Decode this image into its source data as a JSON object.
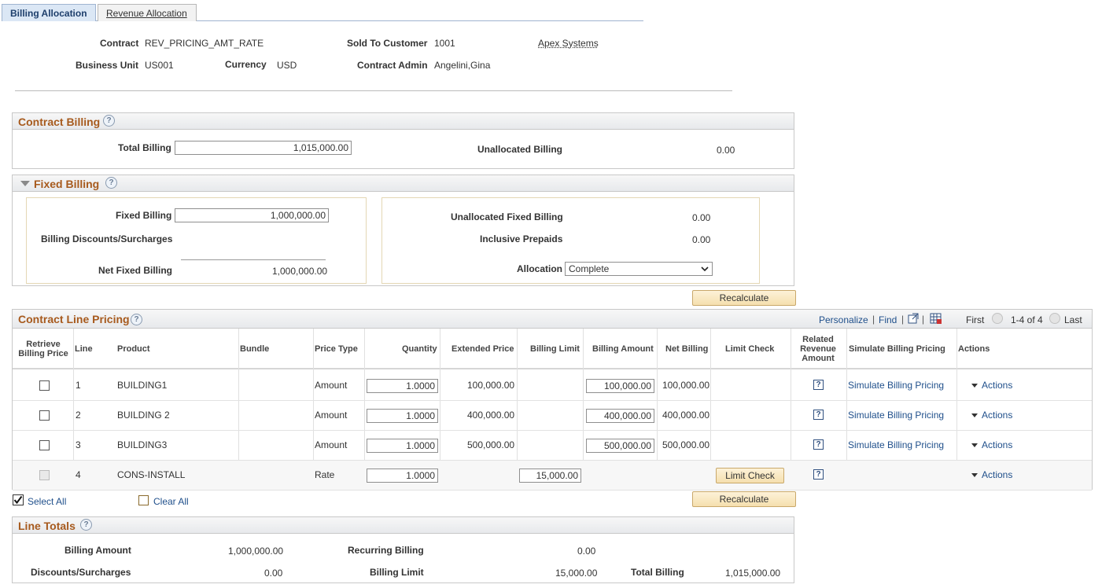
{
  "tabs": [
    {
      "label": "Billing Allocation"
    },
    {
      "label": "Revenue Allocation"
    }
  ],
  "header": {
    "contract_label": "Contract",
    "contract_value": "REV_PRICING_AMT_RATE",
    "sold_to_label": "Sold To Customer",
    "sold_to_value": "1001",
    "customer_name": "Apex Systems",
    "bu_label": "Business Unit",
    "bu_value": "US001",
    "currency_label": "Currency",
    "currency_value": "USD",
    "admin_label": "Contract Admin",
    "admin_value": "Angelini,Gina"
  },
  "contract_billing": {
    "title": "Contract Billing",
    "total_billing_label": "Total Billing",
    "total_billing_value": "1,015,000.00",
    "unallocated_label": "Unallocated Billing",
    "unallocated_value": "0.00"
  },
  "fixed_billing": {
    "title": "Fixed Billing",
    "fixed_label": "Fixed Billing",
    "fixed_value": "1,000,000.00",
    "discounts_label": "Billing Discounts/Surcharges",
    "net_label": "Net Fixed Billing",
    "net_value": "1,000,000.00",
    "unalloc_fixed_label": "Unallocated Fixed Billing",
    "unalloc_fixed_value": "0.00",
    "prepaids_label": "Inclusive Prepaids",
    "prepaids_value": "0.00",
    "allocation_label": "Allocation",
    "allocation_value": "Complete"
  },
  "recalculate_label": "Recalculate",
  "pricing": {
    "title": "Contract Line Pricing",
    "personalize": "Personalize",
    "find": "Find",
    "first": "First",
    "range": "1-4 of 4",
    "last": "Last",
    "columns": {
      "retrieve": "Retrieve Billing Price",
      "line": "Line",
      "product": "Product",
      "bundle": "Bundle",
      "price_type": "Price Type",
      "quantity": "Quantity",
      "extended_price": "Extended Price",
      "billing_limit": "Billing Limit",
      "billing_amount": "Billing Amount",
      "net_billing": "Net Billing",
      "limit_check": "Limit Check",
      "related_revenue": "Related Revenue Amount",
      "simulate": "Simulate Billing Pricing",
      "actions": "Actions"
    },
    "rows": [
      {
        "line": "1",
        "product": "BUILDING1",
        "price_type": "Amount",
        "quantity": "1.0000",
        "extended_price": "100,000.00",
        "billing_limit": "",
        "billing_amount": "100,000.00",
        "net_billing": "100,000.00",
        "simulate": "Simulate Billing Pricing",
        "actions": "Actions"
      },
      {
        "line": "2",
        "product": "BUILDING 2",
        "price_type": "Amount",
        "quantity": "1.0000",
        "extended_price": "400,000.00",
        "billing_limit": "",
        "billing_amount": "400,000.00",
        "net_billing": "400,000.00",
        "simulate": "Simulate Billing Pricing",
        "actions": "Actions"
      },
      {
        "line": "3",
        "product": "BUILDING3",
        "price_type": "Amount",
        "quantity": "1.0000",
        "extended_price": "500,000.00",
        "billing_limit": "",
        "billing_amount": "500,000.00",
        "net_billing": "500,000.00",
        "simulate": "Simulate Billing Pricing",
        "actions": "Actions"
      },
      {
        "line": "4",
        "product": "CONS-INSTALL",
        "price_type": "Rate",
        "quantity": "1.0000",
        "extended_price": "",
        "billing_limit": "15,000.00",
        "billing_amount": "",
        "net_billing": "",
        "limit_check": "Limit Check",
        "actions": "Actions"
      }
    ],
    "select_all": "Select All",
    "clear_all": "Clear All"
  },
  "line_totals": {
    "title": "Line Totals",
    "billing_amount_label": "Billing Amount",
    "billing_amount_value": "1,000,000.00",
    "recurring_label": "Recurring Billing",
    "recurring_value": "0.00",
    "discounts_label": "Discounts/Surcharges",
    "discounts_value": "0.00",
    "billing_limit_label": "Billing Limit",
    "billing_limit_value": "15,000.00",
    "total_billing_label": "Total Billing",
    "total_billing_value": "1,015,000.00"
  },
  "colors": {
    "section_title": "#a75a1d",
    "link": "#1f4f8b",
    "button_bg": "#f5dfae"
  }
}
